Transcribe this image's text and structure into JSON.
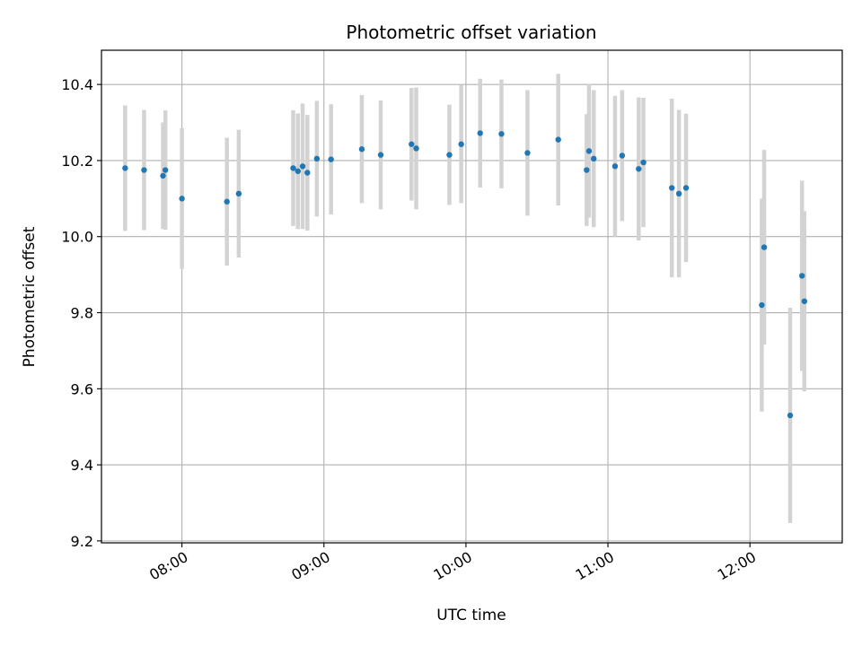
{
  "chart_data": {
    "type": "scatter",
    "title": "Photometric offset variation",
    "xlabel": "UTC time",
    "ylabel": "Photometric offset",
    "x_axis_type": "time",
    "xlim": [
      "07:26",
      "12:39"
    ],
    "ylim": [
      9.195,
      10.49
    ],
    "grid": true,
    "x_ticks": [
      "08:00",
      "09:00",
      "10:00",
      "11:00",
      "12:00"
    ],
    "y_ticks": [
      "9.2",
      "9.4",
      "9.6",
      "9.8",
      "10.0",
      "10.2",
      "10.4"
    ],
    "colors": {
      "points": "#1f77b4",
      "errorbars": "#d3d3d3",
      "grid": "#b0b0b0"
    },
    "series": [
      {
        "points": [
          {
            "x": "07:36",
            "y": 10.18,
            "err": 0.165
          },
          {
            "x": "07:44",
            "y": 10.175,
            "err": 0.158
          },
          {
            "x": "07:52",
            "y": 10.16,
            "err": 0.14
          },
          {
            "x": "07:53",
            "y": 10.175,
            "err": 0.157
          },
          {
            "x": "08:00",
            "y": 10.1,
            "err": 0.185
          },
          {
            "x": "08:19",
            "y": 10.092,
            "err": 0.168
          },
          {
            "x": "08:24",
            "y": 10.113,
            "err": 0.168
          },
          {
            "x": "08:47",
            "y": 10.18,
            "err": 0.152
          },
          {
            "x": "08:49",
            "y": 10.172,
            "err": 0.152
          },
          {
            "x": "08:51",
            "y": 10.185,
            "err": 0.165
          },
          {
            "x": "08:53",
            "y": 10.168,
            "err": 0.152
          },
          {
            "x": "08:57",
            "y": 10.205,
            "err": 0.152
          },
          {
            "x": "09:03",
            "y": 10.203,
            "err": 0.145
          },
          {
            "x": "09:16",
            "y": 10.23,
            "err": 0.142
          },
          {
            "x": "09:24",
            "y": 10.215,
            "err": 0.143
          },
          {
            "x": "09:37",
            "y": 10.243,
            "err": 0.148
          },
          {
            "x": "09:39",
            "y": 10.232,
            "err": 0.16
          },
          {
            "x": "09:53",
            "y": 10.215,
            "err": 0.132
          },
          {
            "x": "09:58",
            "y": 10.243,
            "err": 0.155
          },
          {
            "x": "10:06",
            "y": 10.272,
            "err": 0.143
          },
          {
            "x": "10:15",
            "y": 10.27,
            "err": 0.143
          },
          {
            "x": "10:26",
            "y": 10.22,
            "err": 0.165
          },
          {
            "x": "10:39",
            "y": 10.255,
            "err": 0.173
          },
          {
            "x": "10:51",
            "y": 10.175,
            "err": 0.147
          },
          {
            "x": "10:52",
            "y": 10.225,
            "err": 0.175
          },
          {
            "x": "10:54",
            "y": 10.205,
            "err": 0.18
          },
          {
            "x": "11:03",
            "y": 10.185,
            "err": 0.185
          },
          {
            "x": "11:06",
            "y": 10.213,
            "err": 0.172
          },
          {
            "x": "11:13",
            "y": 10.178,
            "err": 0.188
          },
          {
            "x": "11:15",
            "y": 10.195,
            "err": 0.17
          },
          {
            "x": "11:27",
            "y": 10.128,
            "err": 0.235
          },
          {
            "x": "11:30",
            "y": 10.113,
            "err": 0.22
          },
          {
            "x": "11:33",
            "y": 10.128,
            "err": 0.195
          },
          {
            "x": "12:05",
            "y": 9.82,
            "err": 0.28
          },
          {
            "x": "12:06",
            "y": 9.972,
            "err": 0.256
          },
          {
            "x": "12:17",
            "y": 9.53,
            "err": 0.283
          },
          {
            "x": "12:22",
            "y": 9.897,
            "err": 0.25
          },
          {
            "x": "12:23",
            "y": 9.83,
            "err": 0.237
          }
        ]
      }
    ]
  }
}
